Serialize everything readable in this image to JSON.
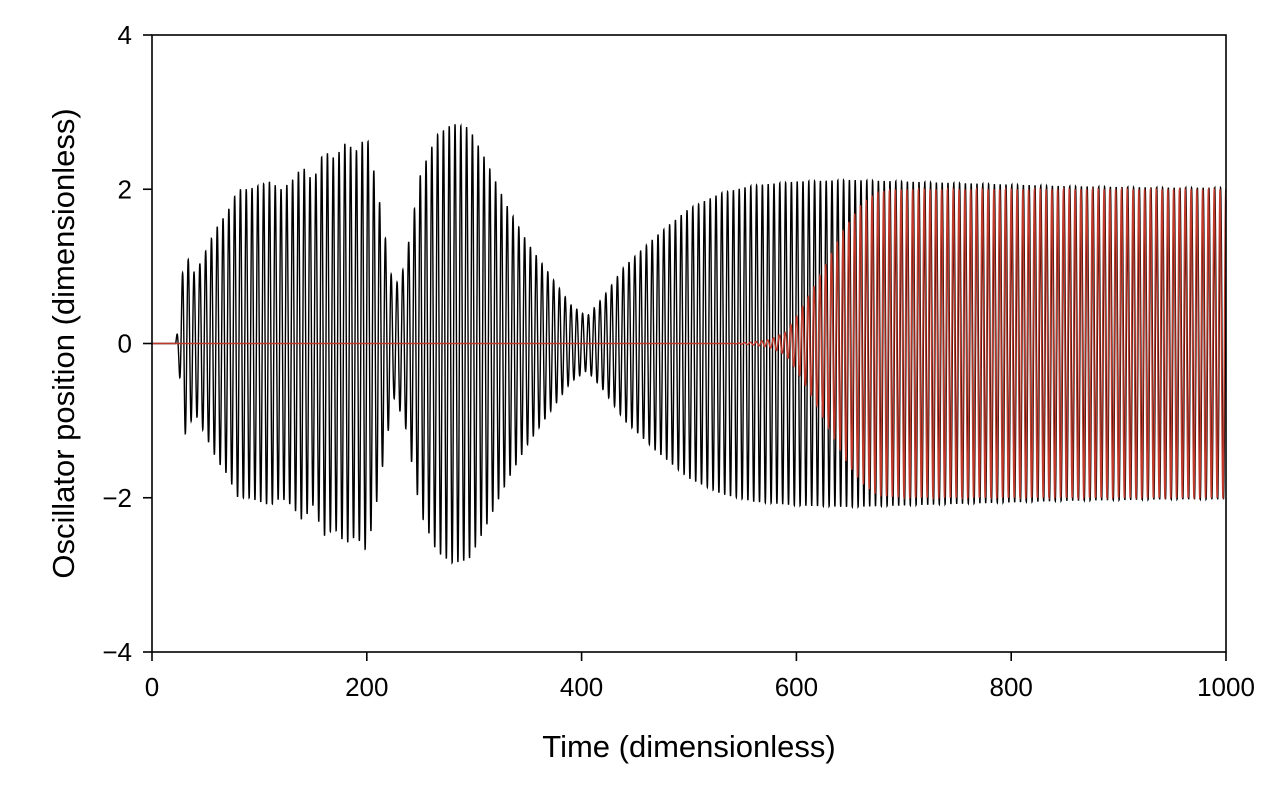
{
  "chart_data": {
    "type": "line",
    "title": "",
    "xlabel": "Time (dimensionless)",
    "ylabel": "Oscillator position (dimensionless)",
    "xlim": [
      0,
      1000
    ],
    "ylim": [
      -4,
      4
    ],
    "xticks": [
      0,
      200,
      400,
      600,
      800,
      1000
    ],
    "yticks": [
      -4,
      -2,
      0,
      2,
      4
    ],
    "xtick_labels": [
      "0",
      "200",
      "400",
      "600",
      "800",
      "1000"
    ],
    "ytick_labels": [
      "−4",
      "−2",
      "0",
      "2",
      "4"
    ],
    "grid": false,
    "legend": "none",
    "series": [
      {
        "color": "#000000",
        "oscillation_period": 5.4,
        "amplitude_envelope": [
          [
            0,
            0
          ],
          [
            22,
            0
          ],
          [
            25,
            0.3
          ],
          [
            30,
            1.2
          ],
          [
            40,
            0.9
          ],
          [
            50,
            1.2
          ],
          [
            60,
            1.5
          ],
          [
            70,
            1.7
          ],
          [
            80,
            2.0
          ],
          [
            90,
            2.0
          ],
          [
            100,
            2.05
          ],
          [
            110,
            2.1
          ],
          [
            120,
            2.0
          ],
          [
            130,
            2.1
          ],
          [
            140,
            2.3
          ],
          [
            150,
            2.1
          ],
          [
            160,
            2.5
          ],
          [
            170,
            2.4
          ],
          [
            180,
            2.6
          ],
          [
            190,
            2.5
          ],
          [
            200,
            2.7
          ],
          [
            210,
            2.0
          ],
          [
            225,
            0.7
          ],
          [
            235,
            1.0
          ],
          [
            250,
            2.2
          ],
          [
            265,
            2.7
          ],
          [
            280,
            2.85
          ],
          [
            295,
            2.8
          ],
          [
            310,
            2.4
          ],
          [
            330,
            1.8
          ],
          [
            350,
            1.3
          ],
          [
            370,
            0.9
          ],
          [
            390,
            0.5
          ],
          [
            405,
            0.35
          ],
          [
            420,
            0.6
          ],
          [
            440,
            1.0
          ],
          [
            470,
            1.4
          ],
          [
            500,
            1.75
          ],
          [
            530,
            1.95
          ],
          [
            560,
            2.05
          ],
          [
            600,
            2.1
          ],
          [
            650,
            2.12
          ],
          [
            700,
            2.1
          ],
          [
            750,
            2.08
          ],
          [
            800,
            2.06
          ],
          [
            850,
            2.04
          ],
          [
            900,
            2.03
          ],
          [
            950,
            2.02
          ],
          [
            1000,
            2.02
          ]
        ]
      },
      {
        "color": "#c0392b",
        "oscillation_period": 5.4,
        "amplitude_envelope": [
          [
            0,
            0
          ],
          [
            540,
            0
          ],
          [
            560,
            0.02
          ],
          [
            575,
            0.05
          ],
          [
            590,
            0.15
          ],
          [
            600,
            0.35
          ],
          [
            615,
            0.7
          ],
          [
            630,
            1.1
          ],
          [
            645,
            1.5
          ],
          [
            660,
            1.8
          ],
          [
            675,
            1.97
          ],
          [
            700,
            2.0
          ],
          [
            800,
            2.0
          ],
          [
            900,
            2.0
          ],
          [
            1000,
            2.0
          ]
        ]
      }
    ]
  }
}
